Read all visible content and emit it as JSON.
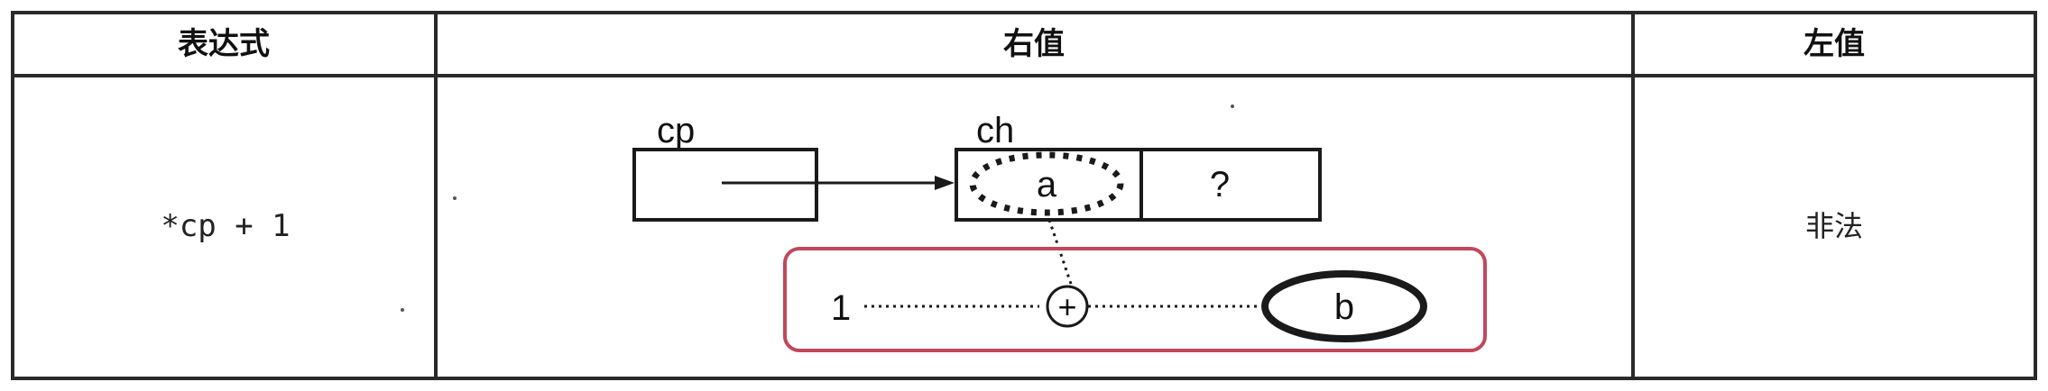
{
  "table": {
    "headers": {
      "expression": "表达式",
      "rvalue": "右值",
      "lvalue": "左值"
    },
    "row": {
      "expression": "*cp + 1",
      "lvalue": "非法"
    }
  },
  "diagram": {
    "pointer_label": "cp",
    "char_label": "ch",
    "char_value": "a",
    "unknown_value": "?",
    "operand": "1",
    "operator": "+",
    "result": "b",
    "highlight_color": "#c0485a"
  }
}
